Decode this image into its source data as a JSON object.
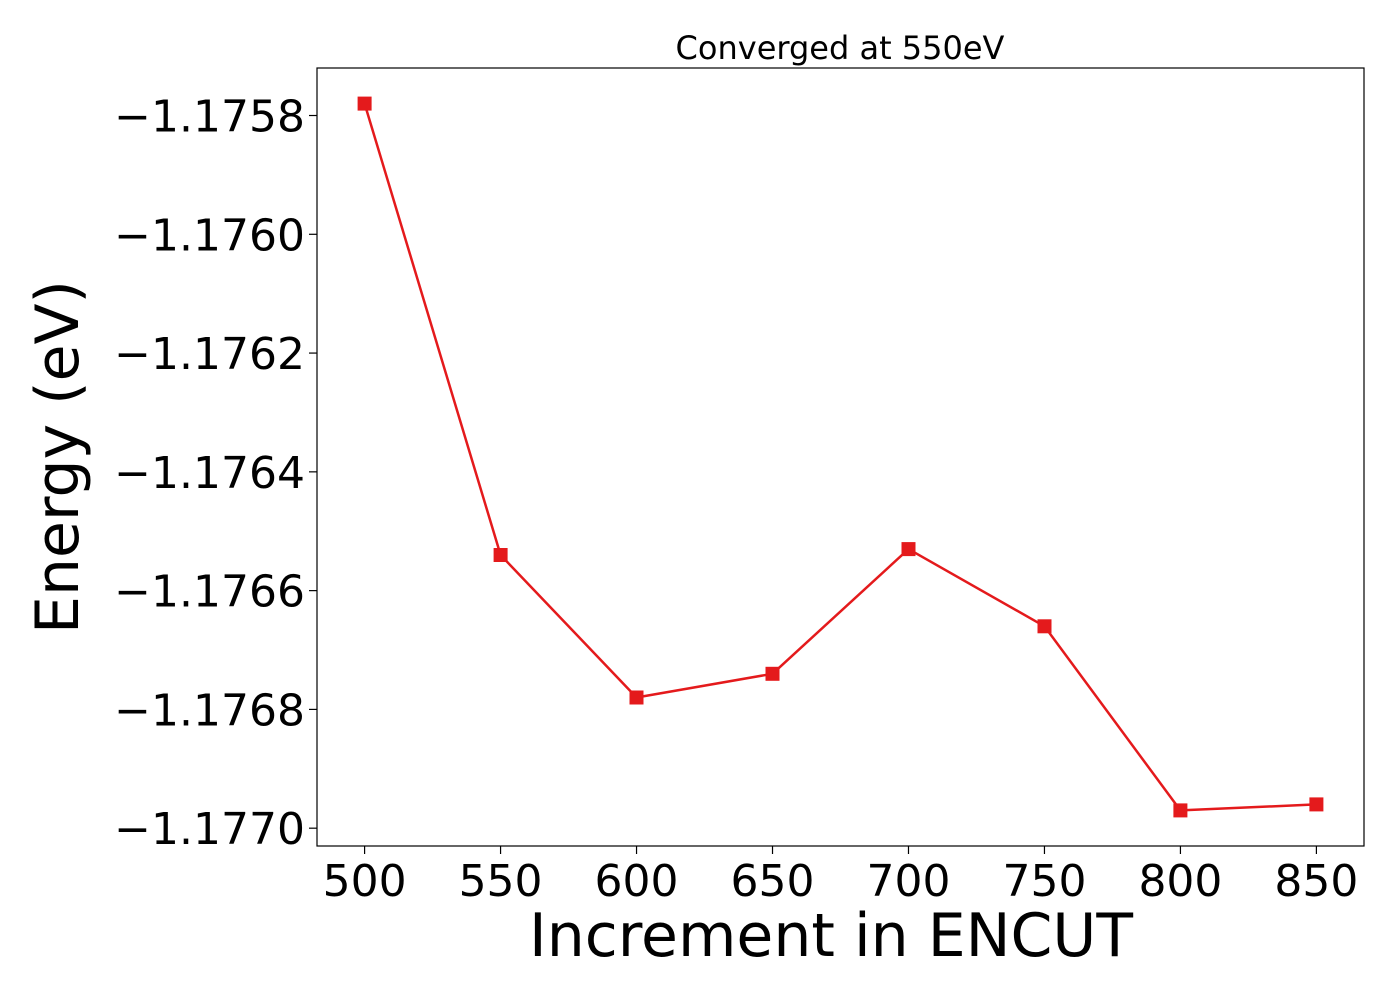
{
  "chart_data": {
    "type": "line",
    "title": "Converged at 550eV",
    "xlabel": "Increment in ENCUT",
    "ylabel": "Energy (eV)",
    "x": [
      500,
      550,
      600,
      650,
      700,
      750,
      800,
      850
    ],
    "series": [
      {
        "values": [
          -1.17578,
          -1.17654,
          -1.17678,
          -1.17674,
          -1.17653,
          -1.17666,
          -1.17697,
          -1.17696
        ],
        "color": "#e41a1c",
        "marker": "square"
      }
    ],
    "xlim": [
      482.5,
      867.5
    ],
    "ylim": [
      -1.17703,
      -1.17572
    ],
    "x_ticks": [
      500,
      550,
      600,
      650,
      700,
      750,
      800,
      850
    ],
    "x_tick_labels": [
      "500",
      "550",
      "600",
      "650",
      "700",
      "750",
      "800",
      "850"
    ],
    "y_ticks": [
      -1.1758,
      -1.176,
      -1.1762,
      -1.1764,
      -1.1766,
      -1.1768,
      -1.177
    ],
    "y_tick_labels": [
      "−1.1758",
      "−1.1760",
      "−1.1762",
      "−1.1764",
      "−1.1766",
      "−1.1768",
      "−1.1770"
    ],
    "grid": false,
    "legend": "none"
  }
}
